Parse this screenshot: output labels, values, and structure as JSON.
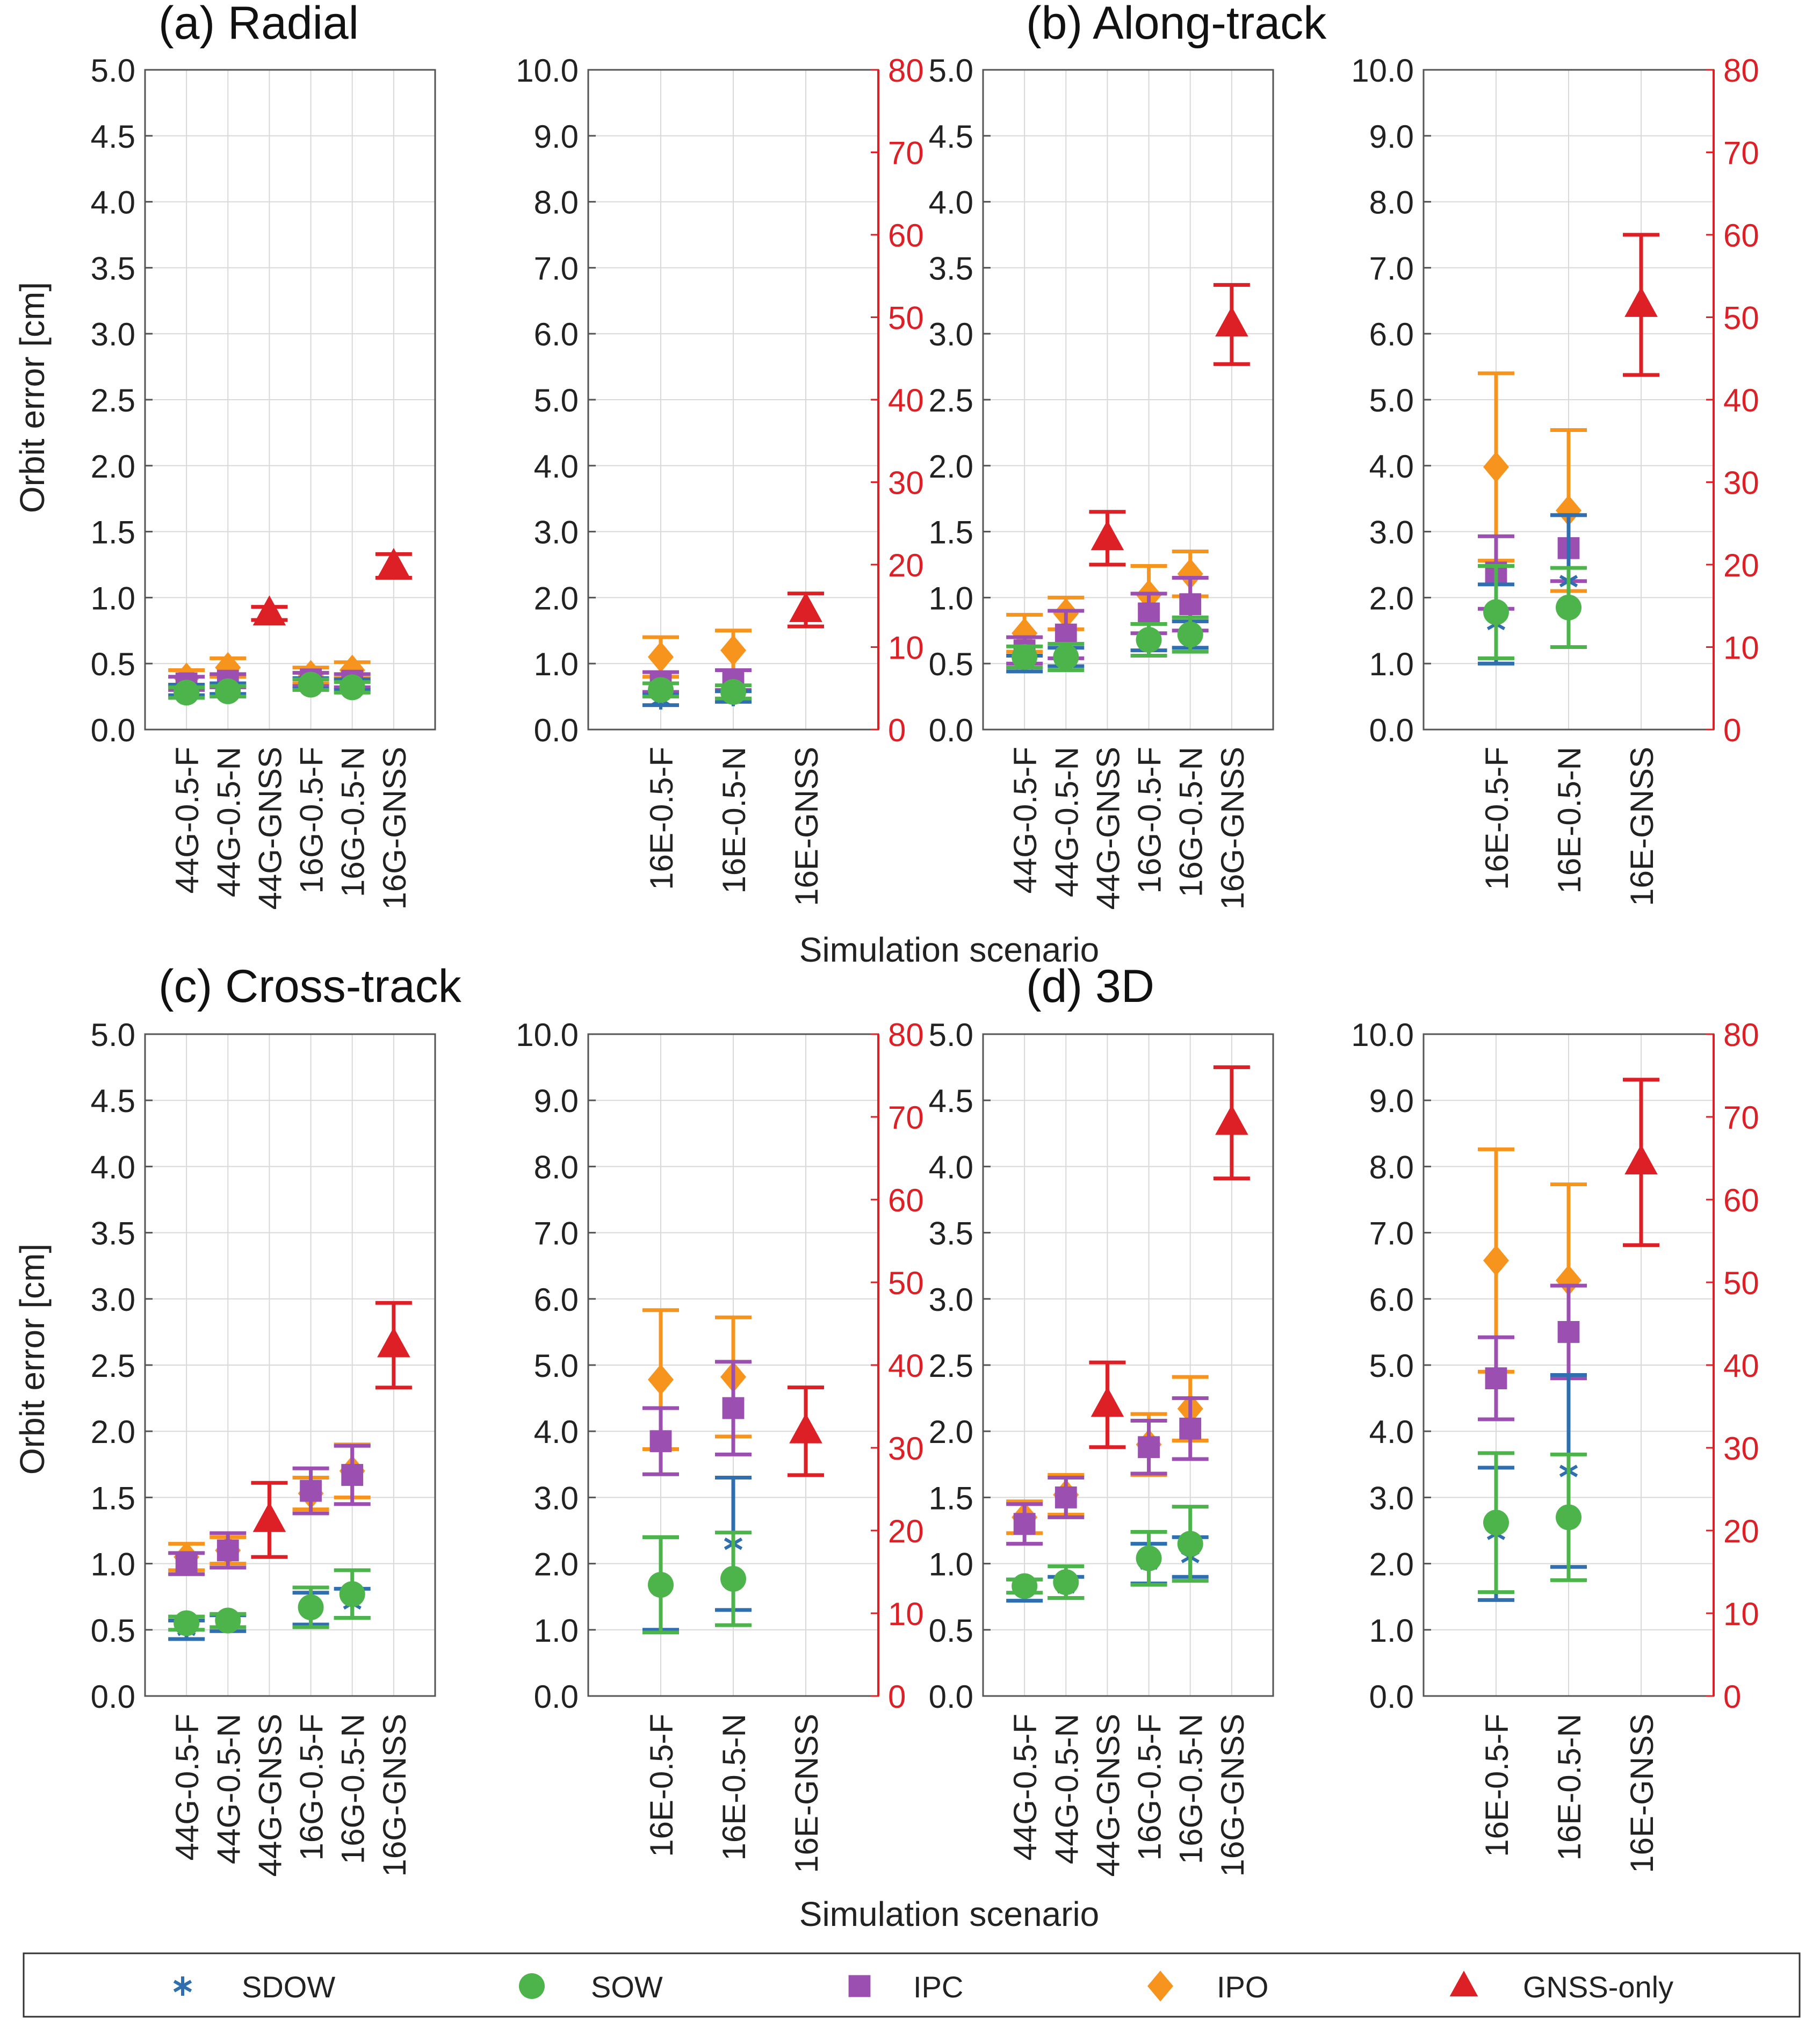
{
  "figure": {
    "common_ylabel": "Orbit error [cm]",
    "common_xlabel": "Simulation scenario"
  },
  "legend": {
    "items": [
      {
        "label": "SDOW",
        "marker": "asterisk",
        "color": "#2f6fb0"
      },
      {
        "label": "SOW",
        "marker": "circle",
        "color": "#4cb44a"
      },
      {
        "label": "IPC",
        "marker": "square",
        "color": "#9b4fb0"
      },
      {
        "label": "IPO",
        "marker": "diamond",
        "color": "#f7941d"
      },
      {
        "label": "GNSS-only",
        "marker": "triangle",
        "color": "#dd1f26"
      }
    ]
  },
  "colors": {
    "SDOW": "#2f6fb0",
    "SOW": "#4cb44a",
    "IPC": "#9b4fb0",
    "IPO": "#f7941d",
    "GNSS-only": "#dd1f26",
    "grid": "#d9d9d9"
  },
  "chart_data": [
    {
      "panel": "a",
      "title": "(a) Radial",
      "type": "scatter",
      "left": {
        "categories": [
          "44G-0.5-F",
          "44G-0.5-N",
          "44G-GNSS",
          "16G-0.5-F",
          "16G-0.5-N",
          "16G-GNSS"
        ],
        "ylim": [
          0,
          5
        ],
        "yticks": [
          "0.0",
          "0.5",
          "1.0",
          "1.5",
          "2.0",
          "2.5",
          "3.0",
          "3.5",
          "4.0",
          "4.5",
          "5.0"
        ],
        "series": [
          {
            "name": "SDOW",
            "values": [
              0.3,
              0.31,
              null,
              0.35,
              0.34,
              null
            ],
            "err": [
              0.04,
              0.04,
              null,
              0.04,
              0.04,
              null
            ]
          },
          {
            "name": "SOW",
            "values": [
              0.28,
              0.29,
              null,
              0.34,
              0.32,
              null
            ],
            "err": [
              0.04,
              0.04,
              null,
              0.04,
              0.04,
              null
            ]
          },
          {
            "name": "IPC",
            "values": [
              0.35,
              0.37,
              null,
              0.38,
              0.37,
              null
            ],
            "err": [
              0.05,
              0.05,
              null,
              0.05,
              0.05,
              null
            ]
          },
          {
            "name": "IPO",
            "values": [
              0.39,
              0.47,
              null,
              0.41,
              0.45,
              null
            ],
            "err": [
              0.06,
              0.07,
              null,
              0.06,
              0.06,
              null
            ]
          },
          {
            "name": "GNSS-only",
            "values": [
              null,
              null,
              0.88,
              null,
              null,
              1.24
            ],
            "err": [
              null,
              null,
              0.05,
              null,
              null,
              0.09
            ]
          }
        ]
      },
      "right": {
        "categories": [
          "16E-0.5-F",
          "16E-0.5-N",
          "16E-GNSS"
        ],
        "ylim": [
          0,
          10
        ],
        "yticks": [
          "0.0",
          "1.0",
          "2.0",
          "3.0",
          "4.0",
          "5.0",
          "6.0",
          "7.0",
          "8.0",
          "9.0",
          "10.0"
        ],
        "ylim_right": [
          0,
          80
        ],
        "yticks_right": [
          "0",
          "10",
          "20",
          "30",
          "40",
          "50",
          "60",
          "70",
          "80"
        ],
        "series": [
          {
            "name": "SDOW",
            "values": [
              0.45,
              0.5,
              null
            ],
            "err": [
              0.08,
              0.08,
              null
            ]
          },
          {
            "name": "SOW",
            "values": [
              0.6,
              0.57,
              null
            ],
            "err": [
              0.1,
              0.1,
              null
            ]
          },
          {
            "name": "IPC",
            "values": [
              0.72,
              0.75,
              null
            ],
            "err": [
              0.15,
              0.15,
              null
            ]
          },
          {
            "name": "IPO",
            "values": [
              1.1,
              1.2,
              null
            ],
            "err": [
              0.3,
              0.3,
              null
            ]
          },
          {
            "name": "GNSS-only",
            "values": [
              null,
              null,
              14.5
            ],
            "err": [
              null,
              null,
              2.0
            ],
            "axis": "right"
          }
        ]
      }
    },
    {
      "panel": "b",
      "title": "(b) Along-track",
      "type": "scatter",
      "left": {
        "categories": [
          "44G-0.5-F",
          "44G-0.5-N",
          "44G-GNSS",
          "16G-0.5-F",
          "16G-0.5-N",
          "16G-GNSS"
        ],
        "ylim": [
          0,
          5
        ],
        "yticks": [
          "0.0",
          "0.5",
          "1.0",
          "1.5",
          "2.0",
          "2.5",
          "3.0",
          "3.5",
          "4.0",
          "4.5",
          "5.0"
        ],
        "series": [
          {
            "name": "SDOW",
            "values": [
              0.5,
              0.55,
              null,
              0.7,
              0.72,
              null
            ],
            "err": [
              0.06,
              0.07,
              null,
              0.1,
              0.1,
              null
            ]
          },
          {
            "name": "SOW",
            "values": [
              0.55,
              0.55,
              null,
              0.68,
              0.72,
              null
            ],
            "err": [
              0.08,
              0.1,
              null,
              0.12,
              0.13,
              null
            ]
          },
          {
            "name": "IPC",
            "values": [
              0.6,
              0.72,
              null,
              0.88,
              0.95,
              null
            ],
            "err": [
              0.1,
              0.18,
              null,
              0.15,
              0.2,
              null
            ]
          },
          {
            "name": "IPO",
            "values": [
              0.73,
              0.88,
              null,
              1.02,
              1.18,
              null
            ],
            "err": [
              0.14,
              0.12,
              null,
              0.22,
              0.17,
              null
            ]
          },
          {
            "name": "GNSS-only",
            "values": [
              null,
              null,
              1.45,
              null,
              null,
              3.07
            ],
            "err": [
              null,
              null,
              0.2,
              null,
              null,
              0.3
            ]
          }
        ]
      },
      "right": {
        "categories": [
          "16E-0.5-F",
          "16E-0.5-N",
          "16E-GNSS"
        ],
        "ylim": [
          0,
          10
        ],
        "yticks": [
          "0.0",
          "1.0",
          "2.0",
          "3.0",
          "4.0",
          "5.0",
          "6.0",
          "7.0",
          "8.0",
          "9.0",
          "10.0"
        ],
        "ylim_right": [
          0,
          80
        ],
        "yticks_right": [
          "0",
          "10",
          "20",
          "30",
          "40",
          "50",
          "60",
          "70",
          "80"
        ],
        "series": [
          {
            "name": "SDOW",
            "values": [
              1.6,
              2.25,
              null
            ],
            "err": [
              0.6,
              1.0,
              null
            ]
          },
          {
            "name": "SOW",
            "values": [
              1.78,
              1.85,
              null
            ],
            "err": [
              0.7,
              0.6,
              null
            ]
          },
          {
            "name": "IPC",
            "values": [
              2.38,
              2.75,
              null
            ],
            "err": [
              0.55,
              0.5,
              null
            ]
          },
          {
            "name": "IPO",
            "values": [
              3.98,
              3.32,
              null
            ],
            "err": [
              1.42,
              1.22,
              null
            ]
          },
          {
            "name": "GNSS-only",
            "values": [
              null,
              null,
              51.5
            ],
            "err": [
              null,
              null,
              8.5
            ],
            "axis": "right"
          }
        ]
      }
    },
    {
      "panel": "c",
      "title": "(c) Cross-track",
      "type": "scatter",
      "left": {
        "categories": [
          "44G-0.5-F",
          "44G-0.5-N",
          "44G-GNSS",
          "16G-0.5-F",
          "16G-0.5-N",
          "16G-GNSS"
        ],
        "ylim": [
          0,
          5
        ],
        "yticks": [
          "0.0",
          "0.5",
          "1.0",
          "1.5",
          "2.0",
          "2.5",
          "3.0",
          "3.5",
          "4.0",
          "4.5",
          "5.0"
        ],
        "series": [
          {
            "name": "SDOW",
            "values": [
              0.5,
              0.55,
              null,
              0.66,
              0.7,
              null
            ],
            "err": [
              0.07,
              0.06,
              null,
              0.12,
              0.11,
              null
            ]
          },
          {
            "name": "SOW",
            "values": [
              0.55,
              0.57,
              null,
              0.67,
              0.77,
              null
            ],
            "err": [
              0.05,
              0.05,
              null,
              0.15,
              0.18,
              null
            ]
          },
          {
            "name": "IPC",
            "values": [
              1.0,
              1.1,
              null,
              1.55,
              1.67,
              null
            ],
            "err": [
              0.08,
              0.13,
              null,
              0.17,
              0.22,
              null
            ]
          },
          {
            "name": "IPO",
            "values": [
              1.05,
              1.1,
              null,
              1.53,
              1.7,
              null
            ],
            "err": [
              0.1,
              0.1,
              null,
              0.12,
              0.2,
              null
            ]
          },
          {
            "name": "GNSS-only",
            "values": [
              null,
              null,
              1.33,
              null,
              null,
              2.65
            ],
            "err": [
              null,
              null,
              0.28,
              null,
              null,
              0.32
            ]
          }
        ]
      },
      "right": {
        "categories": [
          "16E-0.5-F",
          "16E-0.5-N",
          "16E-GNSS"
        ],
        "ylim": [
          0,
          10
        ],
        "yticks": [
          "0.0",
          "1.0",
          "2.0",
          "3.0",
          "4.0",
          "5.0",
          "6.0",
          "7.0",
          "8.0",
          "9.0",
          "10.0"
        ],
        "ylim_right": [
          0,
          80
        ],
        "yticks_right": [
          "0",
          "10",
          "20",
          "30",
          "40",
          "50",
          "60",
          "70",
          "80"
        ],
        "series": [
          {
            "name": "SDOW",
            "values": [
              1.7,
              2.3,
              null
            ],
            "err": [
              0.7,
              1.0,
              null
            ]
          },
          {
            "name": "SOW",
            "values": [
              1.68,
              1.77,
              null
            ],
            "err": [
              0.72,
              0.7,
              null
            ]
          },
          {
            "name": "IPC",
            "values": [
              3.85,
              4.35,
              null
            ],
            "err": [
              0.5,
              0.7,
              null
            ]
          },
          {
            "name": "IPO",
            "values": [
              4.78,
              4.82,
              null
            ],
            "err": [
              1.05,
              0.9,
              null
            ]
          },
          {
            "name": "GNSS-only",
            "values": [
              null,
              null,
              32.0
            ],
            "err": [
              null,
              null,
              5.3
            ],
            "axis": "right"
          }
        ]
      }
    },
    {
      "panel": "d",
      "title": "(d) 3D",
      "type": "scatter",
      "left": {
        "categories": [
          "44G-0.5-F",
          "44G-0.5-N",
          "44G-GNSS",
          "16G-0.5-F",
          "16G-0.5-N",
          "16G-GNSS"
        ],
        "ylim": [
          0,
          5
        ],
        "yticks": [
          "0.0",
          "0.5",
          "1.0",
          "1.5",
          "2.0",
          "2.5",
          "3.0",
          "3.5",
          "4.0",
          "4.5",
          "5.0"
        ],
        "series": [
          {
            "name": "SDOW",
            "values": [
              0.8,
              0.82,
              null,
              1.0,
              1.05,
              null
            ],
            "err": [
              0.08,
              0.08,
              null,
              0.15,
              0.15,
              null
            ]
          },
          {
            "name": "SOW",
            "values": [
              0.83,
              0.86,
              null,
              1.04,
              1.15,
              null
            ],
            "err": [
              0.05,
              0.12,
              null,
              0.2,
              0.28,
              null
            ]
          },
          {
            "name": "IPC",
            "values": [
              1.3,
              1.5,
              null,
              1.88,
              2.02,
              null
            ],
            "err": [
              0.15,
              0.15,
              null,
              0.2,
              0.23,
              null
            ]
          },
          {
            "name": "IPO",
            "values": [
              1.35,
              1.52,
              null,
              1.9,
              2.17,
              null
            ],
            "err": [
              0.12,
              0.15,
              null,
              0.23,
              0.24,
              null
            ]
          },
          {
            "name": "GNSS-only",
            "values": [
              null,
              null,
              2.2,
              null,
              null,
              4.33
            ],
            "err": [
              null,
              null,
              0.32,
              null,
              null,
              0.42
            ]
          }
        ]
      },
      "right": {
        "categories": [
          "16E-0.5-F",
          "16E-0.5-N",
          "16E-GNSS"
        ],
        "ylim": [
          0,
          10
        ],
        "yticks": [
          "0.0",
          "1.0",
          "2.0",
          "3.0",
          "4.0",
          "5.0",
          "6.0",
          "7.0",
          "8.0",
          "9.0",
          "10.0"
        ],
        "ylim_right": [
          0,
          80
        ],
        "yticks_right": [
          "0",
          "10",
          "20",
          "30",
          "40",
          "50",
          "60",
          "70",
          "80"
        ],
        "series": [
          {
            "name": "SDOW",
            "values": [
              2.45,
              3.4,
              null
            ],
            "err": [
              1.0,
              1.45,
              null
            ]
          },
          {
            "name": "SOW",
            "values": [
              2.62,
              2.7,
              null
            ],
            "err": [
              1.05,
              0.95,
              null
            ]
          },
          {
            "name": "IPC",
            "values": [
              4.8,
              5.5,
              null
            ],
            "err": [
              0.62,
              0.7,
              null
            ]
          },
          {
            "name": "IPO",
            "values": [
              6.58,
              6.28,
              null
            ],
            "err": [
              1.68,
              1.45,
              null
            ]
          },
          {
            "name": "GNSS-only",
            "values": [
              null,
              null,
              64.5
            ],
            "err": [
              null,
              null,
              10.0
            ],
            "axis": "right"
          }
        ]
      }
    }
  ]
}
